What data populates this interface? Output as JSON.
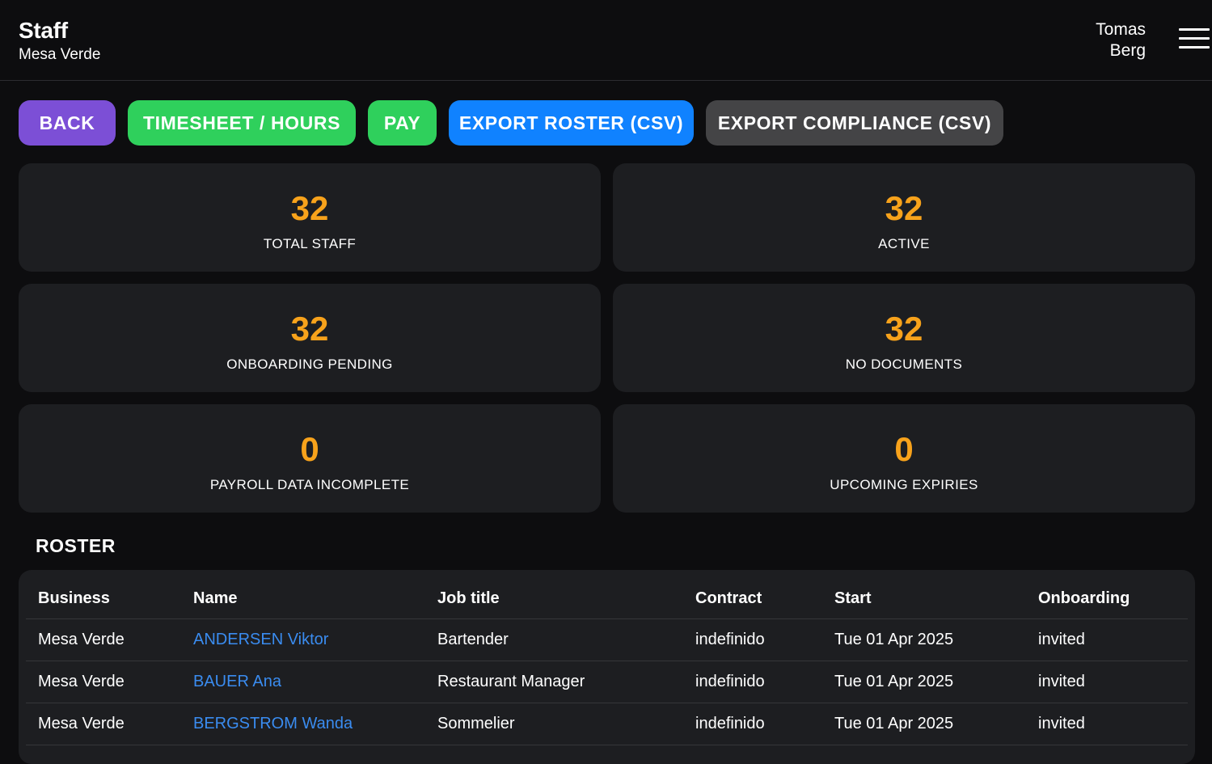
{
  "header": {
    "title": "Staff",
    "subtitle": "Mesa Verde",
    "user_name": "Tomas Berg",
    "menu_icon": "hamburger-menu-icon"
  },
  "actions": {
    "back": "BACK",
    "timesheet": "TIMESHEET / HOURS",
    "pay": "PAY",
    "export_roster": "EXPORT ROSTER (CSV)",
    "export_compliance": "EXPORT COMPLIANCE (CSV)"
  },
  "colors": {
    "back": "#7c4fd6",
    "green": "#2fd05c",
    "blue": "#1082ff",
    "gray": "#444446",
    "stat_value": "#f7a21b",
    "link": "#3a8cf0"
  },
  "stats": [
    {
      "value": "32",
      "label": "TOTAL STAFF"
    },
    {
      "value": "32",
      "label": "ACTIVE"
    },
    {
      "value": "32",
      "label": "ONBOARDING PENDING"
    },
    {
      "value": "32",
      "label": "NO DOCUMENTS"
    },
    {
      "value": "0",
      "label": "PAYROLL DATA INCOMPLETE"
    },
    {
      "value": "0",
      "label": "UPCOMING EXPIRIES"
    }
  ],
  "roster": {
    "title": "ROSTER",
    "columns": {
      "business": "Business",
      "name": "Name",
      "job_title": "Job title",
      "contract": "Contract",
      "start": "Start",
      "onboarding": "Onboarding"
    },
    "rows": [
      {
        "business": "Mesa Verde",
        "name": "ANDERSEN Viktor",
        "job_title": "Bartender",
        "contract": "indefinido",
        "start": "Tue 01 Apr 2025",
        "onboarding": "invited"
      },
      {
        "business": "Mesa Verde",
        "name": "BAUER Ana",
        "job_title": "Restaurant Manager",
        "contract": "indefinido",
        "start": "Tue 01 Apr 2025",
        "onboarding": "invited"
      },
      {
        "business": "Mesa Verde",
        "name": "BERGSTROM Wanda",
        "job_title": "Sommelier",
        "contract": "indefinido",
        "start": "Tue 01 Apr 2025",
        "onboarding": "invited"
      }
    ]
  }
}
